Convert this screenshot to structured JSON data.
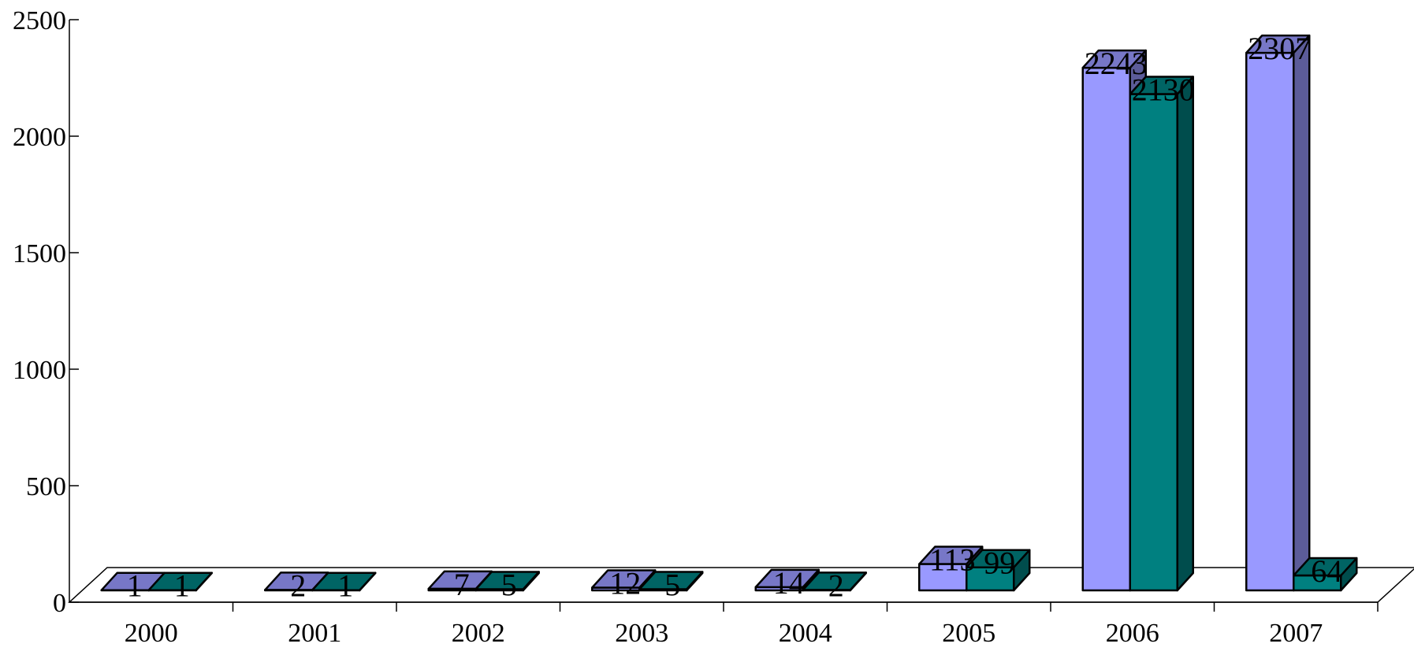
{
  "chart_data": {
    "type": "bar",
    "title": "",
    "xlabel": "",
    "ylabel": "",
    "categories": [
      "2000",
      "2001",
      "2002",
      "2003",
      "2004",
      "2005",
      "2006",
      "2007"
    ],
    "series": [
      {
        "values": [
          1,
          2,
          7,
          12,
          14,
          113,
          2243,
          2307
        ],
        "color": "#9999ff"
      },
      {
        "values": [
          1,
          1,
          5,
          5,
          2,
          99,
          2130,
          64
        ],
        "color": "#008080"
      }
    ],
    "ylim": [
      0,
      2500
    ],
    "yticks": [
      "0",
      "500",
      "1000",
      "1500",
      "2000",
      "2500"
    ],
    "grid": false,
    "legend": "none",
    "style": "3d-clustered-column"
  }
}
